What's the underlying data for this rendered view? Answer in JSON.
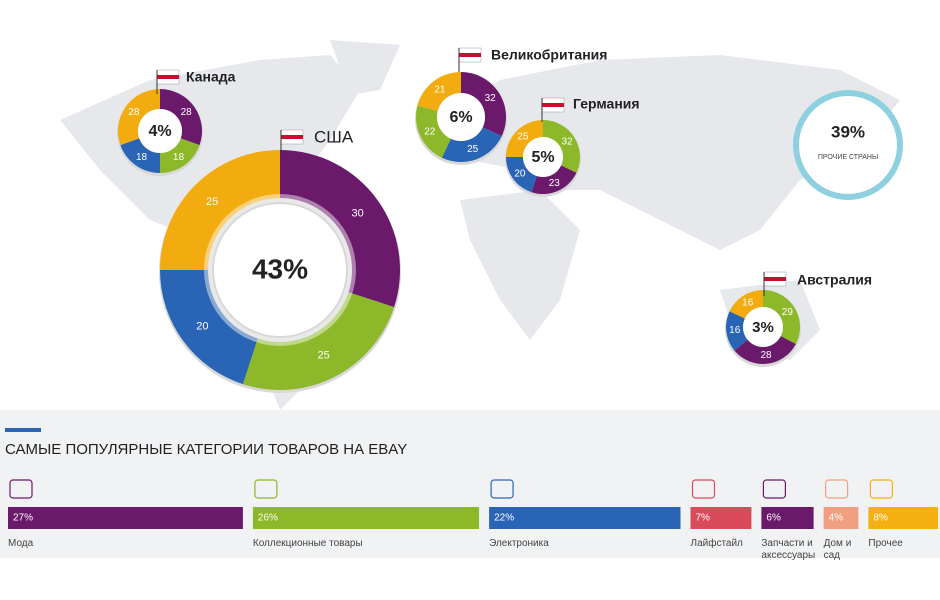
{
  "chart_data": [
    {
      "type": "donut",
      "name": "США",
      "center_label": "43%",
      "values": [
        30,
        25,
        20,
        25
      ],
      "colors": [
        "#6b1a6b",
        "#8cb82a",
        "#2a64b4",
        "#f2ac10"
      ]
    },
    {
      "type": "donut",
      "name": "Канада",
      "center_label": "4%",
      "values": [
        28,
        18,
        18,
        28
      ],
      "colors": [
        "#6b1a6b",
        "#8cb82a",
        "#2a64b4",
        "#f2ac10"
      ]
    },
    {
      "type": "donut",
      "name": "Великобритания",
      "center_label": "6%",
      "values": [
        32,
        25,
        22,
        21
      ],
      "colors": [
        "#6b1a6b",
        "#2a64b4",
        "#8cb82a",
        "#f2ac10"
      ]
    },
    {
      "type": "donut",
      "name": "Германия",
      "center_label": "5%",
      "values": [
        32,
        23,
        20,
        25
      ],
      "colors": [
        "#8cb82a",
        "#6b1a6b",
        "#2a64b4",
        "#f2ac10"
      ]
    },
    {
      "type": "donut",
      "name": "Австралия",
      "center_label": "3%",
      "values": [
        29,
        28,
        16,
        16
      ],
      "colors": [
        "#8cb82a",
        "#6b1a6b",
        "#2a64b4",
        "#f2ac10"
      ]
    },
    {
      "type": "ring",
      "center_label": "39%",
      "caption": "ПРОЧИЕ СТРАНЫ",
      "color": "#8fd0e0"
    },
    {
      "type": "bar",
      "title": "САМЫЕ ПОПУЛЯРНЫЕ КАТЕГОРИИ ТОВАРОВ НА EBAY",
      "categories": [
        "Мода",
        "Коллекционные товары",
        "Электроника",
        "Лайфстайл",
        "Запчасти и аксессуары",
        "Дом и сад",
        "Прочее"
      ],
      "values": [
        27,
        26,
        22,
        7,
        6,
        4,
        8
      ],
      "value_labels": [
        "27%",
        "26%",
        "22%",
        "7%",
        "6%",
        "4%",
        "8%"
      ],
      "colors": [
        "#6b1a6b",
        "#8cb82a",
        "#2a64b4",
        "#d94a5a",
        "#6b1a6b",
        "#f0a080",
        "#f6b012"
      ]
    }
  ]
}
